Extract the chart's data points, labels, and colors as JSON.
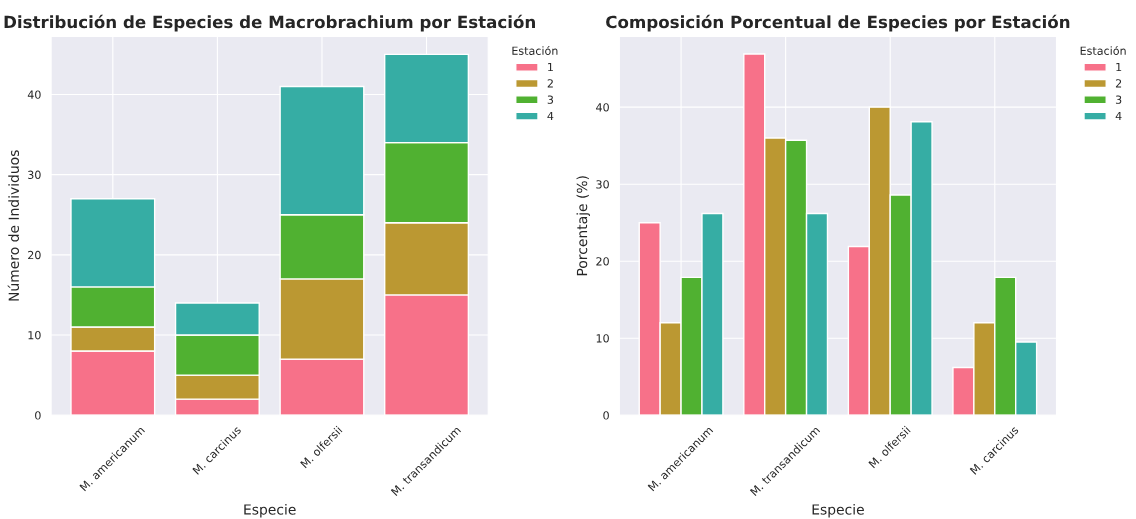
{
  "chart_data": [
    {
      "type": "bar",
      "title": "Distribución de Especies de Macrobrachium por Estación",
      "xlabel": "Especie",
      "ylabel": "Número de Individuos",
      "legend_title": "Estación",
      "stacked": true,
      "categories": [
        "M. americanum",
        "M. carcinus",
        "M. olfersii",
        "M. transandicum"
      ],
      "series": [
        {
          "name": "1",
          "color": "#f77189",
          "values": [
            8,
            2,
            7,
            15
          ]
        },
        {
          "name": "2",
          "color": "#bb9832",
          "values": [
            3,
            3,
            10,
            9
          ]
        },
        {
          "name": "3",
          "color": "#50b131",
          "values": [
            5,
            5,
            8,
            10
          ]
        },
        {
          "name": "4",
          "color": "#36ada4",
          "values": [
            11,
            4,
            16,
            11
          ]
        }
      ],
      "ylim": [
        0,
        47.25
      ],
      "yticks": [
        0,
        10,
        20,
        30,
        40
      ],
      "grid": true,
      "legend": "top right"
    },
    {
      "type": "bar",
      "title": "Composición Porcentual de Especies por Estación",
      "xlabel": "Especie",
      "ylabel": "Porcentaje (%)",
      "legend_title": "Estación",
      "categories": [
        "M. americanum",
        "M. transandicum",
        "M. olfersii",
        "M. carcinus"
      ],
      "series": [
        {
          "name": "1",
          "color": "#f77189",
          "values": [
            25.0,
            46.9,
            21.9,
            6.2
          ]
        },
        {
          "name": "2",
          "color": "#bb9832",
          "values": [
            12.0,
            36.0,
            40.0,
            12.0
          ]
        },
        {
          "name": "3",
          "color": "#50b131",
          "values": [
            17.9,
            35.7,
            28.6,
            17.9
          ]
        },
        {
          "name": "4",
          "color": "#36ada4",
          "values": [
            26.2,
            26.2,
            38.1,
            9.5
          ]
        }
      ],
      "ylim": [
        0,
        49.2
      ],
      "yticks": [
        0,
        10,
        20,
        30,
        40
      ],
      "grid": true,
      "legend": "top right"
    }
  ]
}
